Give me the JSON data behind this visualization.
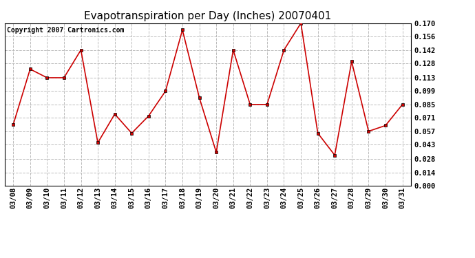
{
  "title": "Evapotranspiration per Day (Inches) 20070401",
  "copyright": "Copyright 2007 Cartronics.com",
  "dates": [
    "03/08",
    "03/09",
    "03/10",
    "03/11",
    "03/12",
    "03/13",
    "03/14",
    "03/15",
    "03/16",
    "03/17",
    "03/18",
    "03/19",
    "03/20",
    "03/21",
    "03/22",
    "03/23",
    "03/24",
    "03/25",
    "03/26",
    "03/27",
    "03/28",
    "03/29",
    "03/30",
    "03/31"
  ],
  "values": [
    0.064,
    0.122,
    0.113,
    0.113,
    0.142,
    0.045,
    0.075,
    0.055,
    0.073,
    0.099,
    0.163,
    0.092,
    0.035,
    0.142,
    0.085,
    0.085,
    0.142,
    0.17,
    0.055,
    0.032,
    0.13,
    0.057,
    0.063,
    0.085
  ],
  "line_color": "#cc0000",
  "marker": "s",
  "marker_color": "#000000",
  "marker_size": 3,
  "bg_color": "#ffffff",
  "plot_bg_color": "#ffffff",
  "grid_color": "#bbbbbb",
  "grid_style": "--",
  "ylim": [
    0.0,
    0.17
  ],
  "yticks": [
    0.0,
    0.014,
    0.028,
    0.043,
    0.057,
    0.071,
    0.085,
    0.099,
    0.113,
    0.128,
    0.142,
    0.156,
    0.17
  ],
  "title_fontsize": 11,
  "copyright_fontsize": 7,
  "tick_fontsize": 7.5,
  "line_width": 1.2
}
